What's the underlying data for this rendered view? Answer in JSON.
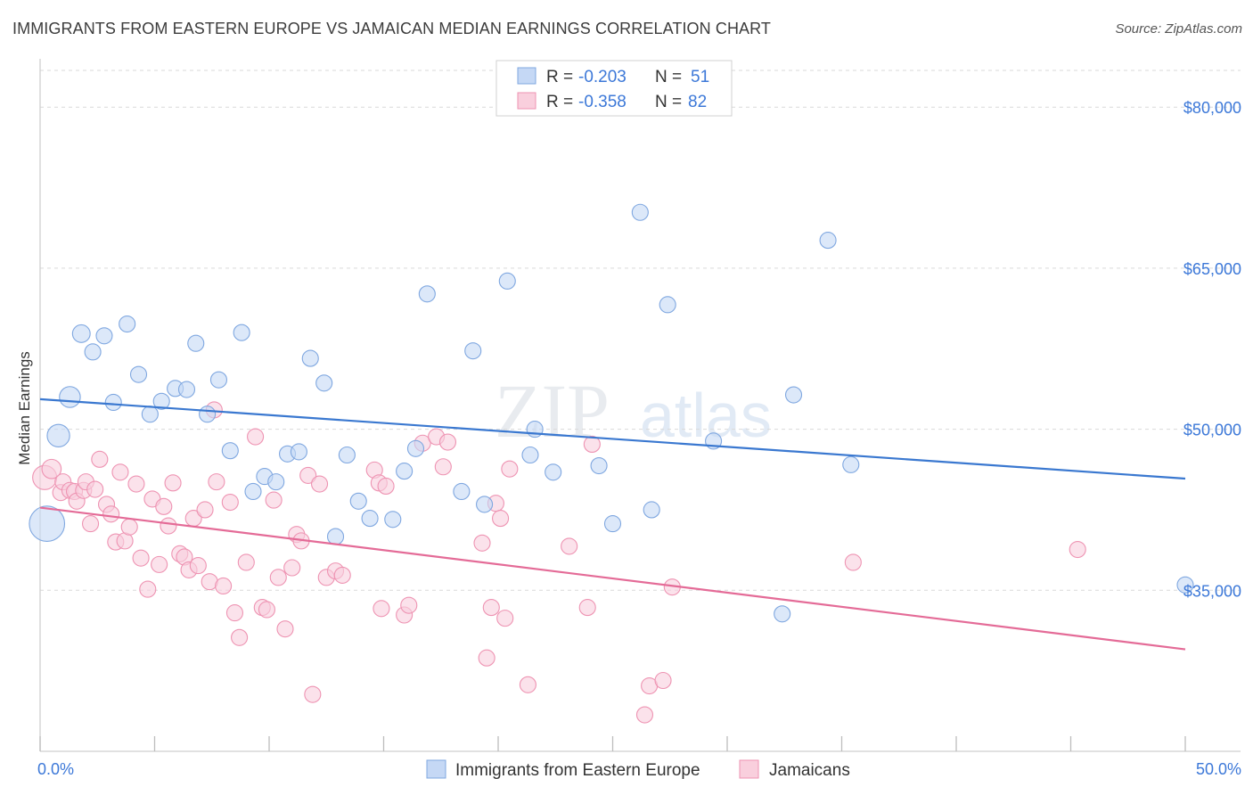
{
  "title": "IMMIGRANTS FROM EASTERN EUROPE VS JAMAICAN MEDIAN EARNINGS CORRELATION CHART",
  "source": "Source: ZipAtlas.com",
  "watermark": {
    "zip": "ZIP",
    "atlas": "atlas"
  },
  "colors": {
    "blue_fill": "#c5d8f5",
    "blue_stroke": "#7fa7e0",
    "blue_line": "#3a78d0",
    "pink_fill": "#f9cfdd",
    "pink_stroke": "#ee93b2",
    "pink_line": "#e46b97",
    "tick_text": "#3c78d8",
    "grid": "#d9d9d9"
  },
  "legend": {
    "r_label": "R =",
    "n_label": "N =",
    "series": [
      {
        "r": "-0.203",
        "n": "51"
      },
      {
        "r": "-0.358",
        "n": "82"
      }
    ]
  },
  "chart_data": {
    "type": "scatter",
    "title": "IMMIGRANTS FROM EASTERN EUROPE VS JAMAICAN MEDIAN EARNINGS CORRELATION CHART",
    "xlabel": "",
    "ylabel": "Median Earnings",
    "xlim": [
      0,
      50
    ],
    "ylim": [
      20000,
      84000
    ],
    "x_tick_labels": [
      "0.0%",
      "50.0%"
    ],
    "y_ticks": [
      35000,
      50000,
      65000,
      80000
    ],
    "y_tick_labels": [
      "$35,000",
      "$50,000",
      "$65,000",
      "$80,000"
    ],
    "grid": true,
    "series": [
      {
        "name": "Immigrants from Eastern Europe",
        "color": "blue",
        "trend": {
          "x": [
            0,
            50
          ],
          "y": [
            52800,
            45400
          ]
        },
        "points": [
          {
            "x": 0.3,
            "y": 41200,
            "s": 2.2
          },
          {
            "x": 0.8,
            "y": 49400,
            "s": 1.4
          },
          {
            "x": 1.3,
            "y": 53000,
            "s": 1.3
          },
          {
            "x": 1.8,
            "y": 58900,
            "s": 1.1
          },
          {
            "x": 2.3,
            "y": 57200,
            "s": 1
          },
          {
            "x": 2.8,
            "y": 58700,
            "s": 1
          },
          {
            "x": 3.2,
            "y": 52500,
            "s": 1
          },
          {
            "x": 3.8,
            "y": 59800,
            "s": 1
          },
          {
            "x": 4.3,
            "y": 55100,
            "s": 1
          },
          {
            "x": 4.8,
            "y": 51400,
            "s": 1
          },
          {
            "x": 5.3,
            "y": 52600,
            "s": 1
          },
          {
            "x": 5.9,
            "y": 53800,
            "s": 1
          },
          {
            "x": 6.4,
            "y": 53700,
            "s": 1
          },
          {
            "x": 6.8,
            "y": 58000,
            "s": 1
          },
          {
            "x": 7.3,
            "y": 51400,
            "s": 1
          },
          {
            "x": 7.8,
            "y": 54600,
            "s": 1
          },
          {
            "x": 8.3,
            "y": 48000,
            "s": 1
          },
          {
            "x": 8.8,
            "y": 59000,
            "s": 1
          },
          {
            "x": 9.3,
            "y": 44200,
            "s": 1
          },
          {
            "x": 9.8,
            "y": 45600,
            "s": 1
          },
          {
            "x": 10.3,
            "y": 45100,
            "s": 1
          },
          {
            "x": 10.8,
            "y": 47700,
            "s": 1
          },
          {
            "x": 11.3,
            "y": 47900,
            "s": 1
          },
          {
            "x": 11.8,
            "y": 56600,
            "s": 1
          },
          {
            "x": 12.4,
            "y": 54300,
            "s": 1
          },
          {
            "x": 12.9,
            "y": 40000,
            "s": 1
          },
          {
            "x": 13.4,
            "y": 47600,
            "s": 1
          },
          {
            "x": 13.9,
            "y": 43300,
            "s": 1
          },
          {
            "x": 14.4,
            "y": 41700,
            "s": 1
          },
          {
            "x": 15.4,
            "y": 41600,
            "s": 1
          },
          {
            "x": 15.9,
            "y": 46100,
            "s": 1
          },
          {
            "x": 16.4,
            "y": 48200,
            "s": 1
          },
          {
            "x": 16.9,
            "y": 62600,
            "s": 1
          },
          {
            "x": 18.4,
            "y": 44200,
            "s": 1
          },
          {
            "x": 18.9,
            "y": 57300,
            "s": 1
          },
          {
            "x": 19.4,
            "y": 43000,
            "s": 1
          },
          {
            "x": 20.4,
            "y": 63800,
            "s": 1
          },
          {
            "x": 21.4,
            "y": 47600,
            "s": 1
          },
          {
            "x": 21.6,
            "y": 50000,
            "s": 1
          },
          {
            "x": 22.4,
            "y": 46000,
            "s": 1
          },
          {
            "x": 24.4,
            "y": 46600,
            "s": 1
          },
          {
            "x": 25.0,
            "y": 41200,
            "s": 1
          },
          {
            "x": 26.2,
            "y": 70200,
            "s": 1
          },
          {
            "x": 26.7,
            "y": 42500,
            "s": 1
          },
          {
            "x": 27.4,
            "y": 61600,
            "s": 1
          },
          {
            "x": 29.4,
            "y": 48900,
            "s": 1
          },
          {
            "x": 32.4,
            "y": 32800,
            "s": 1
          },
          {
            "x": 32.9,
            "y": 53200,
            "s": 1
          },
          {
            "x": 34.4,
            "y": 67600,
            "s": 1
          },
          {
            "x": 35.4,
            "y": 46700,
            "s": 1
          },
          {
            "x": 50.0,
            "y": 35500,
            "s": 1
          }
        ]
      },
      {
        "name": "Jamaicans",
        "color": "pink",
        "trend": {
          "x": [
            0,
            50
          ],
          "y": [
            42700,
            29500
          ]
        },
        "points": [
          {
            "x": 0.2,
            "y": 45500,
            "s": 1.5
          },
          {
            "x": 0.5,
            "y": 46300,
            "s": 1.2
          },
          {
            "x": 0.9,
            "y": 44100,
            "s": 1
          },
          {
            "x": 1.0,
            "y": 45100,
            "s": 1
          },
          {
            "x": 1.3,
            "y": 44300,
            "s": 1
          },
          {
            "x": 1.5,
            "y": 44200,
            "s": 1
          },
          {
            "x": 1.6,
            "y": 43300,
            "s": 1
          },
          {
            "x": 1.9,
            "y": 44300,
            "s": 1
          },
          {
            "x": 2.0,
            "y": 45100,
            "s": 1
          },
          {
            "x": 2.2,
            "y": 41200,
            "s": 1
          },
          {
            "x": 2.4,
            "y": 44400,
            "s": 1
          },
          {
            "x": 2.6,
            "y": 47200,
            "s": 1
          },
          {
            "x": 2.9,
            "y": 43000,
            "s": 1
          },
          {
            "x": 3.1,
            "y": 42100,
            "s": 1
          },
          {
            "x": 3.3,
            "y": 39500,
            "s": 1
          },
          {
            "x": 3.5,
            "y": 46000,
            "s": 1
          },
          {
            "x": 3.7,
            "y": 39600,
            "s": 1
          },
          {
            "x": 3.9,
            "y": 40900,
            "s": 1
          },
          {
            "x": 4.2,
            "y": 44900,
            "s": 1
          },
          {
            "x": 4.4,
            "y": 38000,
            "s": 1
          },
          {
            "x": 4.7,
            "y": 35100,
            "s": 1
          },
          {
            "x": 4.9,
            "y": 43500,
            "s": 1
          },
          {
            "x": 5.2,
            "y": 37400,
            "s": 1
          },
          {
            "x": 5.4,
            "y": 42800,
            "s": 1
          },
          {
            "x": 5.6,
            "y": 41000,
            "s": 1
          },
          {
            "x": 5.8,
            "y": 45000,
            "s": 1
          },
          {
            "x": 6.1,
            "y": 38400,
            "s": 1
          },
          {
            "x": 6.3,
            "y": 38100,
            "s": 1
          },
          {
            "x": 6.5,
            "y": 36900,
            "s": 1
          },
          {
            "x": 6.7,
            "y": 41700,
            "s": 1
          },
          {
            "x": 6.9,
            "y": 37300,
            "s": 1
          },
          {
            "x": 7.2,
            "y": 42500,
            "s": 1
          },
          {
            "x": 7.4,
            "y": 35800,
            "s": 1
          },
          {
            "x": 7.6,
            "y": 51800,
            "s": 1
          },
          {
            "x": 7.7,
            "y": 45100,
            "s": 1
          },
          {
            "x": 8.0,
            "y": 35400,
            "s": 1
          },
          {
            "x": 8.3,
            "y": 43200,
            "s": 1
          },
          {
            "x": 8.5,
            "y": 32900,
            "s": 1
          },
          {
            "x": 8.7,
            "y": 30600,
            "s": 1
          },
          {
            "x": 9.0,
            "y": 37600,
            "s": 1
          },
          {
            "x": 9.4,
            "y": 49300,
            "s": 1
          },
          {
            "x": 9.7,
            "y": 33400,
            "s": 1
          },
          {
            "x": 9.9,
            "y": 33200,
            "s": 1
          },
          {
            "x": 10.2,
            "y": 43400,
            "s": 1
          },
          {
            "x": 10.4,
            "y": 36200,
            "s": 1
          },
          {
            "x": 10.7,
            "y": 31400,
            "s": 1
          },
          {
            "x": 11.0,
            "y": 37100,
            "s": 1
          },
          {
            "x": 11.2,
            "y": 40200,
            "s": 1
          },
          {
            "x": 11.4,
            "y": 39600,
            "s": 1
          },
          {
            "x": 11.7,
            "y": 45700,
            "s": 1
          },
          {
            "x": 11.9,
            "y": 25300,
            "s": 1
          },
          {
            "x": 12.2,
            "y": 44900,
            "s": 1
          },
          {
            "x": 12.5,
            "y": 36200,
            "s": 1
          },
          {
            "x": 12.9,
            "y": 36800,
            "s": 1
          },
          {
            "x": 13.2,
            "y": 36400,
            "s": 1
          },
          {
            "x": 14.6,
            "y": 46200,
            "s": 1
          },
          {
            "x": 14.8,
            "y": 45000,
            "s": 1
          },
          {
            "x": 15.1,
            "y": 44700,
            "s": 1
          },
          {
            "x": 14.9,
            "y": 33300,
            "s": 1
          },
          {
            "x": 15.9,
            "y": 32700,
            "s": 1
          },
          {
            "x": 16.1,
            "y": 33600,
            "s": 1
          },
          {
            "x": 16.7,
            "y": 48700,
            "s": 1
          },
          {
            "x": 17.3,
            "y": 49300,
            "s": 1
          },
          {
            "x": 17.6,
            "y": 46500,
            "s": 1
          },
          {
            "x": 17.8,
            "y": 48800,
            "s": 1
          },
          {
            "x": 19.3,
            "y": 39400,
            "s": 1
          },
          {
            "x": 19.5,
            "y": 28700,
            "s": 1
          },
          {
            "x": 19.7,
            "y": 33400,
            "s": 1
          },
          {
            "x": 19.9,
            "y": 43100,
            "s": 1
          },
          {
            "x": 20.1,
            "y": 41700,
            "s": 1
          },
          {
            "x": 20.3,
            "y": 32400,
            "s": 1
          },
          {
            "x": 20.5,
            "y": 46300,
            "s": 1
          },
          {
            "x": 21.3,
            "y": 26200,
            "s": 1
          },
          {
            "x": 23.1,
            "y": 39100,
            "s": 1
          },
          {
            "x": 23.9,
            "y": 33400,
            "s": 1
          },
          {
            "x": 24.1,
            "y": 48600,
            "s": 1
          },
          {
            "x": 26.4,
            "y": 23400,
            "s": 1
          },
          {
            "x": 26.6,
            "y": 26100,
            "s": 1
          },
          {
            "x": 27.2,
            "y": 26600,
            "s": 1
          },
          {
            "x": 27.6,
            "y": 35300,
            "s": 1
          },
          {
            "x": 35.5,
            "y": 37600,
            "s": 1
          },
          {
            "x": 45.3,
            "y": 38800,
            "s": 1
          }
        ]
      }
    ]
  },
  "bottom_legend": [
    {
      "label": "Immigrants from Eastern Europe"
    },
    {
      "label": "Jamaicans"
    }
  ]
}
